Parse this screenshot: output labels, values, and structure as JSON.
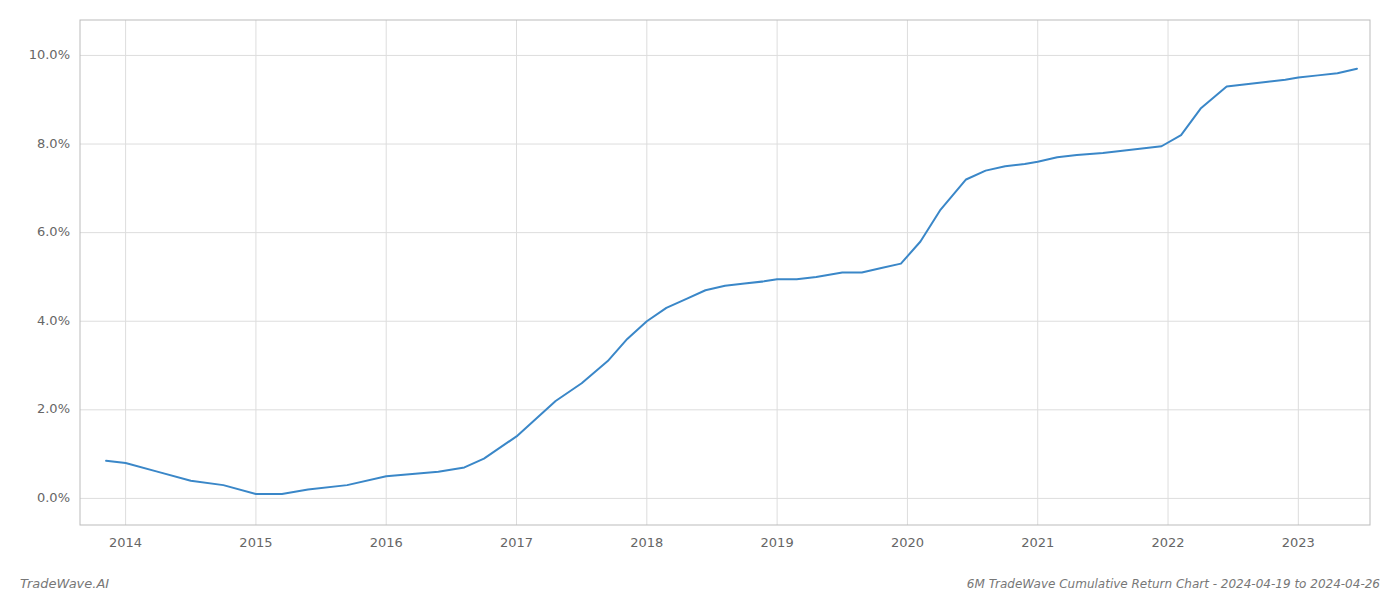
{
  "chart_data": {
    "type": "line",
    "title": "6M TradeWave Cumulative Return Chart - 2024-04-19 to 2024-04-26",
    "annotations": [
      "TradeWave.AI"
    ],
    "x": [
      2013.85,
      2014.0,
      2014.25,
      2014.5,
      2014.75,
      2015.0,
      2015.2,
      2015.4,
      2015.7,
      2016.0,
      2016.2,
      2016.4,
      2016.6,
      2016.75,
      2017.0,
      2017.15,
      2017.3,
      2017.5,
      2017.7,
      2017.85,
      2018.0,
      2018.15,
      2018.3,
      2018.45,
      2018.6,
      2018.75,
      2018.9,
      2019.0,
      2019.15,
      2019.3,
      2019.5,
      2019.65,
      2019.8,
      2019.95,
      2020.1,
      2020.25,
      2020.45,
      2020.6,
      2020.75,
      2020.9,
      2021.0,
      2021.15,
      2021.3,
      2021.5,
      2021.65,
      2021.8,
      2021.95,
      2022.1,
      2022.25,
      2022.45,
      2022.6,
      2022.75,
      2022.9,
      2023.0,
      2023.15,
      2023.3,
      2023.45
    ],
    "values": [
      0.0085,
      0.008,
      0.006,
      0.004,
      0.003,
      0.001,
      0.001,
      0.002,
      0.003,
      0.005,
      0.0055,
      0.006,
      0.007,
      0.009,
      0.014,
      0.018,
      0.022,
      0.026,
      0.031,
      0.036,
      0.04,
      0.043,
      0.045,
      0.047,
      0.048,
      0.0485,
      0.049,
      0.0495,
      0.0495,
      0.05,
      0.051,
      0.051,
      0.052,
      0.053,
      0.058,
      0.065,
      0.072,
      0.074,
      0.075,
      0.0755,
      0.076,
      0.077,
      0.0775,
      0.078,
      0.0785,
      0.079,
      0.0795,
      0.082,
      0.088,
      0.093,
      0.0935,
      0.094,
      0.0945,
      0.095,
      0.0955,
      0.096,
      0.097
    ],
    "color": "#3a87c8",
    "xlim": [
      2013.65,
      2023.55
    ],
    "ylim": [
      -0.006,
      0.108
    ],
    "xticks": [
      2014,
      2015,
      2016,
      2017,
      2018,
      2019,
      2020,
      2021,
      2022,
      2023
    ],
    "yticks": [
      {
        "value": 0.0,
        "label": "0.0%"
      },
      {
        "value": 0.02,
        "label": "2.0%"
      },
      {
        "value": 0.04,
        "label": "4.0%"
      },
      {
        "value": 0.06,
        "label": "6.0%"
      },
      {
        "value": 0.08,
        "label": "8.0%"
      },
      {
        "value": 0.1,
        "label": "10.0%"
      }
    ],
    "grid": true
  }
}
